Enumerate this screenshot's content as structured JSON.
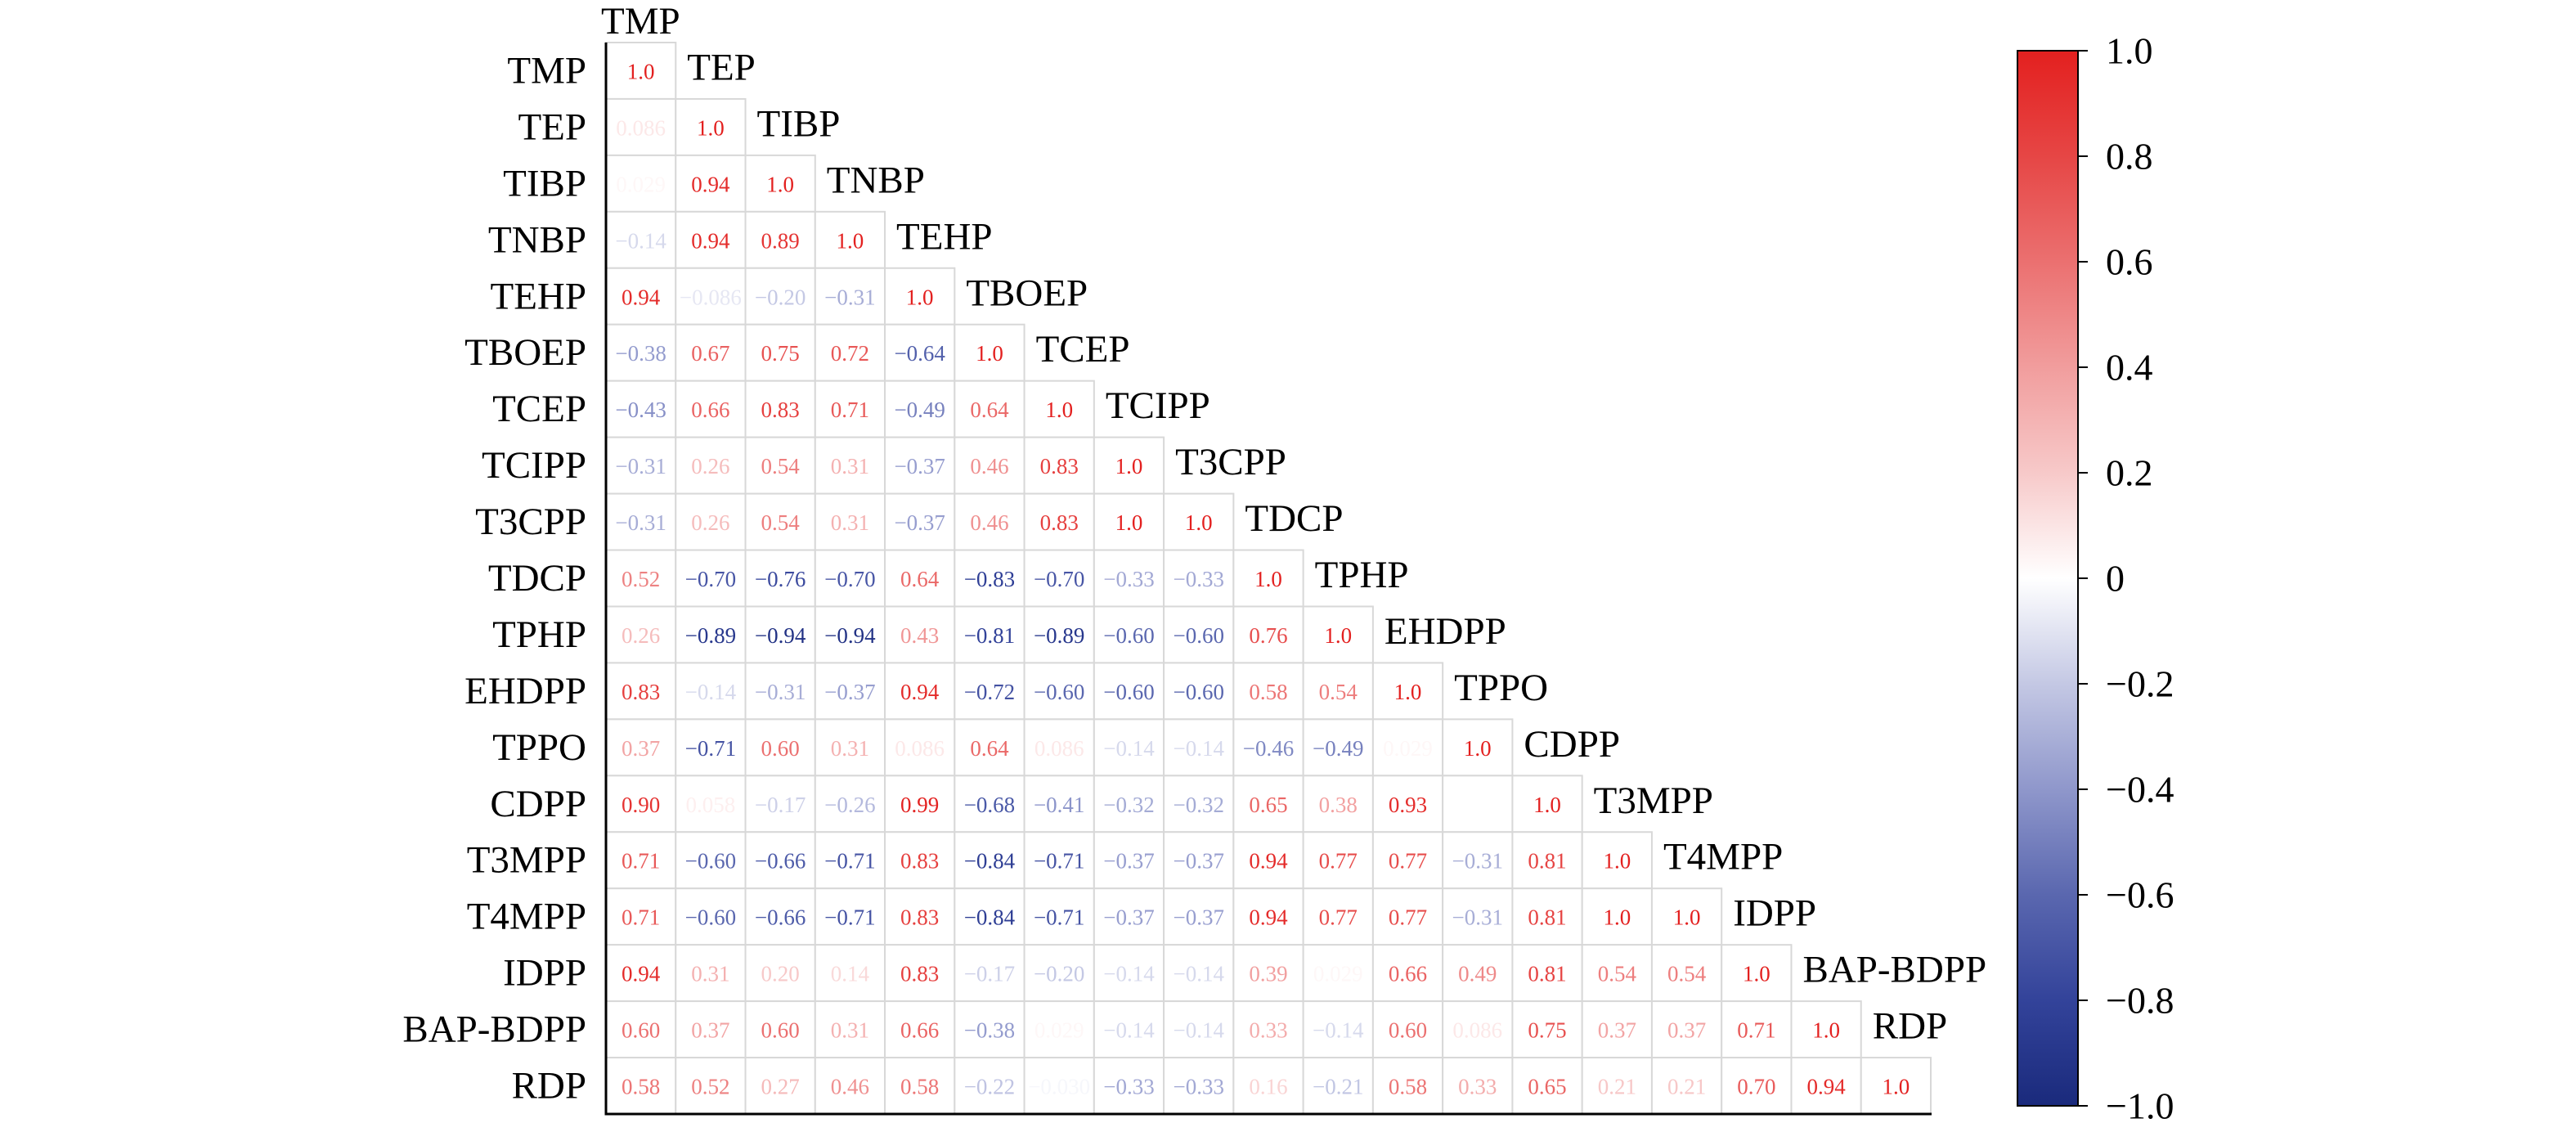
{
  "chart_data": {
    "type": "heatmap",
    "triangle": "lower",
    "grid": true,
    "variables": [
      "TMP",
      "TEP",
      "TIBP",
      "TNBP",
      "TEHP",
      "TBOEP",
      "TCEP",
      "TCIPP",
      "T3CPP",
      "TDCP",
      "TPHP",
      "EHDPP",
      "TPPO",
      "CDPP",
      "T3MPP",
      "T4MPP",
      "IDPP",
      "BAP-BDPP",
      "RDP"
    ],
    "matrix": [
      [
        1.0
      ],
      [
        0.086,
        1.0
      ],
      [
        0.029,
        0.94,
        1.0
      ],
      [
        -0.14,
        0.94,
        0.89,
        1.0
      ],
      [
        0.94,
        -0.086,
        -0.2,
        -0.31,
        1.0
      ],
      [
        -0.38,
        0.67,
        0.75,
        0.72,
        -0.64,
        1.0
      ],
      [
        -0.43,
        0.66,
        0.83,
        0.71,
        -0.49,
        0.64,
        1.0
      ],
      [
        -0.31,
        0.26,
        0.54,
        0.31,
        -0.37,
        0.46,
        0.83,
        1.0
      ],
      [
        -0.31,
        0.26,
        0.54,
        0.31,
        -0.37,
        0.46,
        0.83,
        1.0,
        1.0
      ],
      [
        0.52,
        -0.7,
        -0.76,
        -0.7,
        0.64,
        -0.83,
        -0.7,
        -0.33,
        -0.33,
        1.0
      ],
      [
        0.26,
        -0.89,
        -0.94,
        -0.94,
        0.43,
        -0.81,
        -0.89,
        -0.6,
        -0.6,
        0.76,
        1.0
      ],
      [
        0.83,
        -0.14,
        -0.31,
        -0.37,
        0.94,
        -0.72,
        -0.6,
        -0.6,
        -0.6,
        0.58,
        0.54,
        1.0
      ],
      [
        0.37,
        -0.71,
        0.6,
        0.31,
        0.086,
        0.64,
        0.086,
        -0.14,
        -0.14,
        -0.46,
        -0.49,
        0.029,
        1.0
      ],
      [
        0.9,
        0.058,
        -0.17,
        -0.26,
        0.99,
        -0.68,
        -0.41,
        -0.32,
        -0.32,
        0.65,
        0.38,
        0.93,
        0.0,
        1.0
      ],
      [
        0.71,
        -0.6,
        -0.66,
        -0.71,
        0.83,
        -0.84,
        -0.71,
        -0.37,
        -0.37,
        0.94,
        0.77,
        0.77,
        -0.31,
        0.81,
        1.0
      ],
      [
        0.71,
        -0.6,
        -0.66,
        -0.71,
        0.83,
        -0.84,
        -0.71,
        -0.37,
        -0.37,
        0.94,
        0.77,
        0.77,
        -0.31,
        0.81,
        1.0,
        1.0
      ],
      [
        0.94,
        0.31,
        0.2,
        0.14,
        0.83,
        -0.17,
        -0.2,
        -0.14,
        -0.14,
        0.39,
        0.029,
        0.66,
        0.49,
        0.81,
        0.54,
        0.54,
        1.0
      ],
      [
        0.6,
        0.37,
        0.6,
        0.31,
        0.66,
        -0.38,
        0.029,
        -0.14,
        -0.14,
        0.33,
        -0.14,
        0.6,
        0.086,
        0.75,
        0.37,
        0.37,
        0.71,
        1.0
      ],
      [
        0.58,
        0.52,
        0.27,
        0.46,
        0.58,
        -0.22,
        -0.03,
        -0.33,
        -0.33,
        0.16,
        -0.21,
        0.58,
        0.33,
        0.65,
        0.21,
        0.21,
        0.7,
        0.94,
        1.0
      ]
    ],
    "value_range": [
      -1,
      1
    ],
    "colormap": [
      {
        "value": -1.0,
        "color": "#1a2a7c"
      },
      {
        "value": -0.8,
        "color": "#33439a"
      },
      {
        "value": -0.6,
        "color": "#5a67af"
      },
      {
        "value": -0.4,
        "color": "#8f97cb"
      },
      {
        "value": -0.2,
        "color": "#c4c8e4"
      },
      {
        "value": 0.0,
        "color": "#ffffff"
      },
      {
        "value": 0.2,
        "color": "#f7c9c9"
      },
      {
        "value": 0.4,
        "color": "#f19d9d"
      },
      {
        "value": 0.6,
        "color": "#eb7070"
      },
      {
        "value": 0.8,
        "color": "#e64645"
      },
      {
        "value": 1.0,
        "color": "#e3201f"
      }
    ],
    "grid_color": "#d8d8d8",
    "axis_color": "#000000",
    "colorbar": {
      "placement": "right",
      "ticks": [
        {
          "value": 1.0,
          "label": "1.0"
        },
        {
          "value": 0.8,
          "label": "0.8"
        },
        {
          "value": 0.6,
          "label": "0.6"
        },
        {
          "value": 0.4,
          "label": "0.4"
        },
        {
          "value": 0.2,
          "label": "0.2"
        },
        {
          "value": 0.0,
          "label": "0"
        },
        {
          "value": -0.2,
          "label": "−0.2"
        },
        {
          "value": -0.4,
          "label": "−0.4"
        },
        {
          "value": -0.6,
          "label": "−0.6"
        },
        {
          "value": -0.8,
          "label": "−0.8"
        },
        {
          "value": -1.0,
          "label": "−1.0"
        }
      ]
    }
  }
}
